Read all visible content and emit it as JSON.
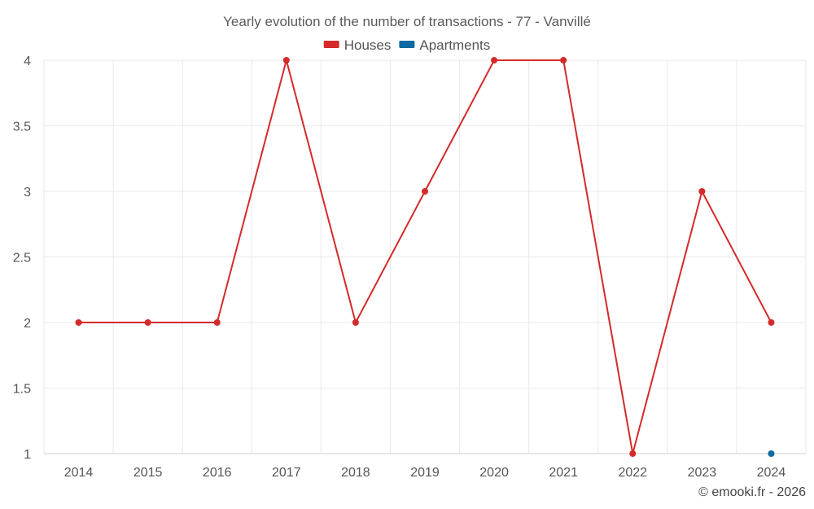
{
  "chart_data": {
    "type": "line",
    "title": "Yearly evolution of the number of transactions - 77 - Vanvillé",
    "xlabel": "",
    "ylabel": "",
    "categories": [
      "2014",
      "2015",
      "2016",
      "2017",
      "2018",
      "2019",
      "2020",
      "2021",
      "2022",
      "2023",
      "2024"
    ],
    "ylim": [
      1,
      4
    ],
    "yticks": [
      "1",
      "1.5",
      "2",
      "2.5",
      "3",
      "3.5",
      "4"
    ],
    "grid": true,
    "legend_position": "top-center",
    "series": [
      {
        "name": "Houses",
        "color": "#d42a2a",
        "values": [
          2,
          2,
          2,
          4,
          2,
          3,
          4,
          4,
          1,
          3,
          2
        ]
      },
      {
        "name": "Apartments",
        "color": "#0e6aa0",
        "values": [
          null,
          null,
          null,
          null,
          null,
          null,
          null,
          null,
          null,
          null,
          1
        ]
      }
    ]
  },
  "credit": "© emooki.fr - 2026"
}
